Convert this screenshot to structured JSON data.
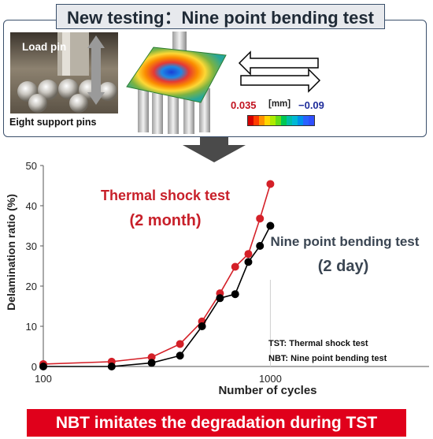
{
  "header": {
    "title": "New testing：Nine point bending test"
  },
  "figure": {
    "load_pin_label": "Load pin",
    "support_pins_label": "Eight support pins",
    "colorbar": {
      "max_value": "0.035",
      "unit": "[mm]",
      "min_value": "−0.09"
    },
    "icons": [
      "load-pin-arrow-icon",
      "cyclic-loading-arrows-icon",
      "process-arrow-icon"
    ]
  },
  "chart_data": {
    "type": "line",
    "xlabel": "Number of cycles",
    "ylabel": "Delamination ratio (%)",
    "xscale": "log",
    "xlim": [
      100,
      5000
    ],
    "ylim": [
      0,
      50
    ],
    "x_ticks": [
      "100",
      "1000"
    ],
    "y_ticks": [
      "0",
      "10",
      "20",
      "30",
      "40",
      "50"
    ],
    "grid": false,
    "series": [
      {
        "name": "Thermal shock test",
        "color": "#d42028",
        "points": [
          [
            100,
            0.6
          ],
          [
            200,
            1.2
          ],
          [
            300,
            2.3
          ],
          [
            400,
            5.6
          ],
          [
            500,
            11.2
          ],
          [
            600,
            18.2
          ],
          [
            700,
            24.8
          ],
          [
            800,
            28
          ],
          [
            900,
            36.8
          ],
          [
            1000,
            45.4
          ]
        ]
      },
      {
        "name": "Nine point bending test",
        "color": "#000000",
        "points": [
          [
            100,
            0
          ],
          [
            200,
            0
          ],
          [
            300,
            0.9
          ],
          [
            400,
            2.7
          ],
          [
            500,
            10
          ],
          [
            600,
            17
          ],
          [
            700,
            18
          ],
          [
            800,
            26
          ],
          [
            900,
            30
          ],
          [
            1000,
            35
          ]
        ]
      }
    ],
    "annotations": {
      "tst_title": "Thermal shock test",
      "tst_duration": "(2 month)",
      "nbt_title": "Nine point bending test",
      "nbt_duration": "(2 day)",
      "abbrev_tst": "TST: Thermal shock test",
      "abbrev_nbt": "NBT: Nine point bending test"
    },
    "colors": {
      "tst": "#d42028",
      "nbt": "#000000"
    }
  },
  "banner": {
    "text": "NBT imitates the degradation during TST"
  }
}
